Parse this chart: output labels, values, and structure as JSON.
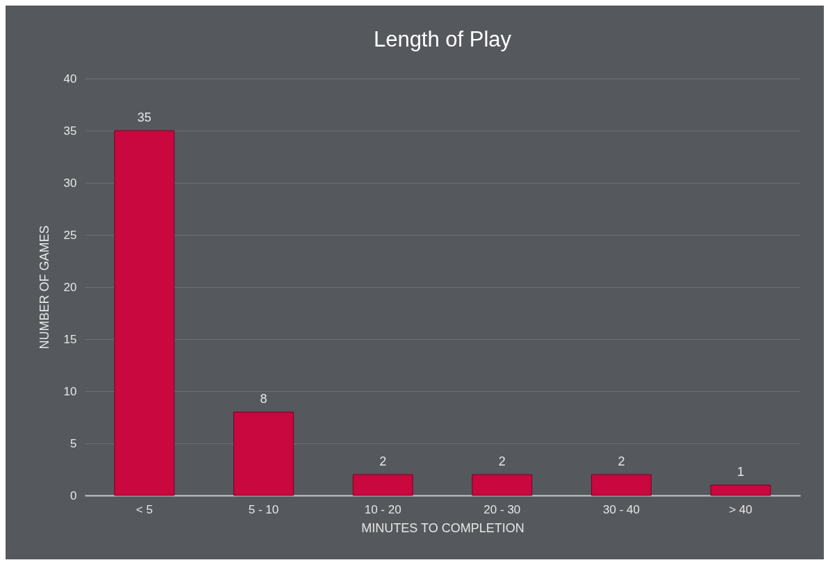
{
  "chart_data": {
    "type": "bar",
    "title": "Length of Play",
    "xlabel": "MINUTES TO COMPLETION",
    "ylabel": "NUMBER OF GAMES",
    "categories": [
      "< 5",
      "5 - 10",
      "10 - 20",
      "20 - 30",
      "30 - 40",
      "> 40"
    ],
    "values": [
      35,
      8,
      2,
      2,
      2,
      1
    ],
    "color": "#c8083f",
    "ylim": [
      0,
      40
    ],
    "yticks": [
      0,
      5,
      10,
      15,
      20,
      25,
      30,
      35,
      40
    ],
    "grid": "y",
    "data_labels": true
  }
}
